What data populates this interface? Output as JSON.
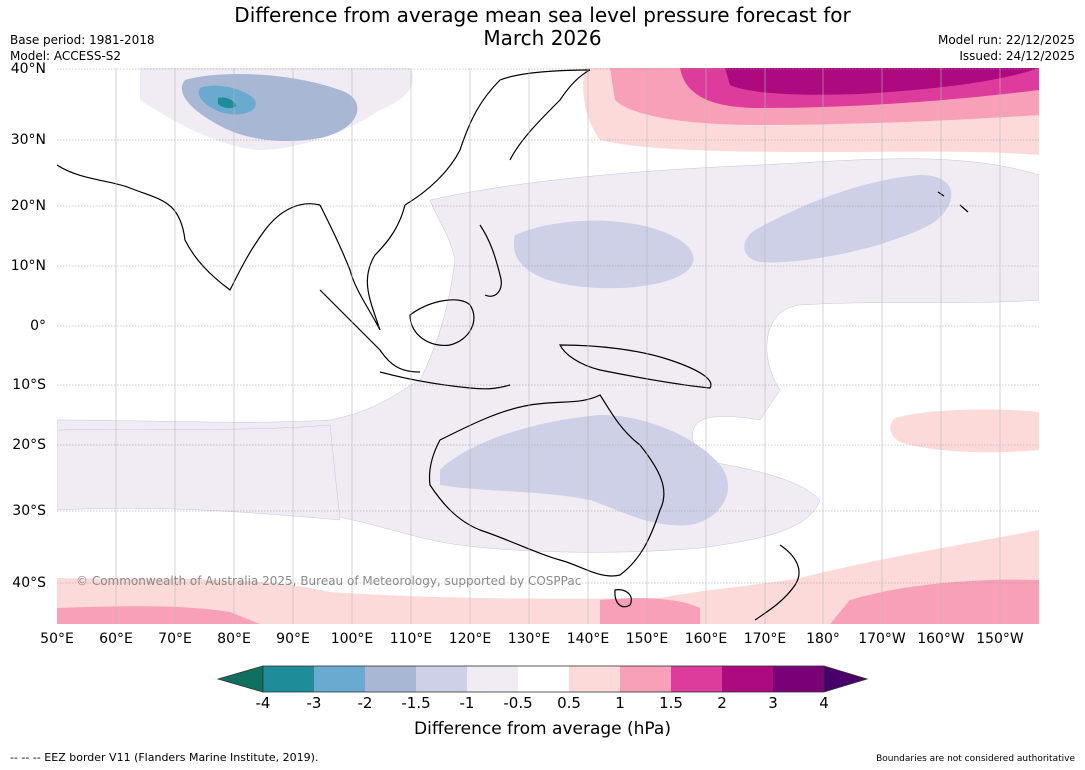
{
  "header": {
    "title_line1": "Difference from average mean sea level pressure forecast for",
    "title_line2": "March 2026",
    "base_period": "Base period: 1981-2018",
    "model": "Model: ACCESS-S2",
    "model_run": "Model run: 22/12/2025",
    "issued": "Issued: 24/12/2025"
  },
  "map": {
    "lat_labels": [
      "40°N",
      "30°N",
      "20°N",
      "10°N",
      "0°",
      "10°S",
      "20°S",
      "30°S",
      "40°S"
    ],
    "lon_labels": [
      "50°E",
      "60°E",
      "70°E",
      "80°E",
      "90°E",
      "100°E",
      "110°E",
      "120°E",
      "130°E",
      "140°E",
      "150°E",
      "160°E",
      "170°E",
      "180°",
      "170°W",
      "160°W",
      "150°W"
    ],
    "copyright": "© Commonwealth of Australia 2025, Bureau of Meteorology, supported by COSPPac"
  },
  "colorbar": {
    "ticks": [
      "-4",
      "-3",
      "-2",
      "-1.5",
      "-1",
      "-0.5",
      "0.5",
      "1",
      "1.5",
      "2",
      "3",
      "4"
    ],
    "colors": [
      "#0f7060",
      "#1f8c9a",
      "#6aa9d0",
      "#a8b8d4",
      "#cdd0e6",
      "#f1ebf4",
      "#ffffff",
      "#fcdada",
      "#f8a0b8",
      "#dd3c9c",
      "#ad0a80",
      "#7a0077",
      "#4a006a"
    ],
    "label": "Difference from average (hPa)"
  },
  "footer": {
    "eez_note": "--  --  -- EEZ border V11 (Flanders Marine Institute, 2019).",
    "boundaries_note": "Boundaries are not considered authoritative"
  }
}
